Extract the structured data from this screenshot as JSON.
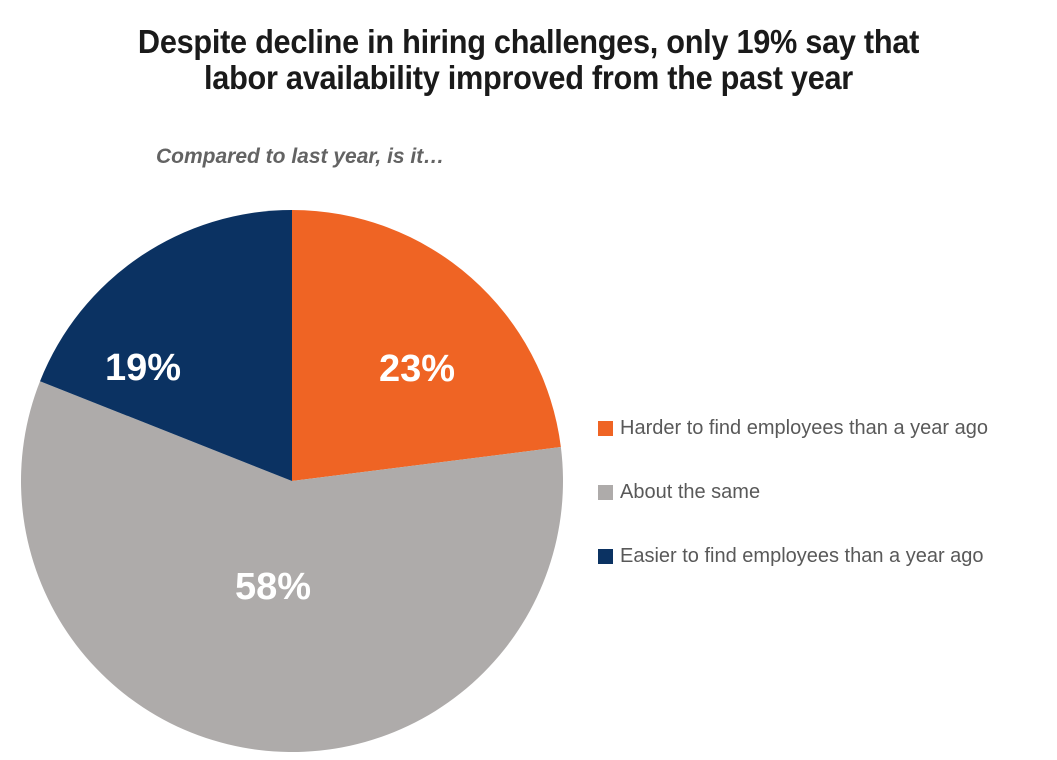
{
  "header": {
    "title_line1": "Despite decline in hiring challenges, only 19% say that",
    "title_line2": "labor availability improved from the past year"
  },
  "chart_data": {
    "type": "pie",
    "title": "Despite decline in hiring challenges, only 19% say that labor availability improved from the past year",
    "subtitle": "Compared to last year, is it…",
    "start_angle_deg": 0,
    "direction": "clockwise",
    "legend_position": "right",
    "total": 100,
    "slices": [
      {
        "label": "Harder to find employees than a year ago",
        "value": 23,
        "data_label": "23%",
        "color": "#EF6424"
      },
      {
        "label": "About the same",
        "value": 58,
        "data_label": "58%",
        "color": "#AEABAA"
      },
      {
        "label": "Easier to find employees than a year ago",
        "value": 19,
        "data_label": "19%",
        "color": "#0B3262"
      }
    ]
  },
  "colors": {
    "background": "#FFFFFF",
    "title_text": "#1A1A1A",
    "subtitle_text": "#636363",
    "legend_text": "#595959",
    "data_label_text": "#FFFFFF"
  }
}
